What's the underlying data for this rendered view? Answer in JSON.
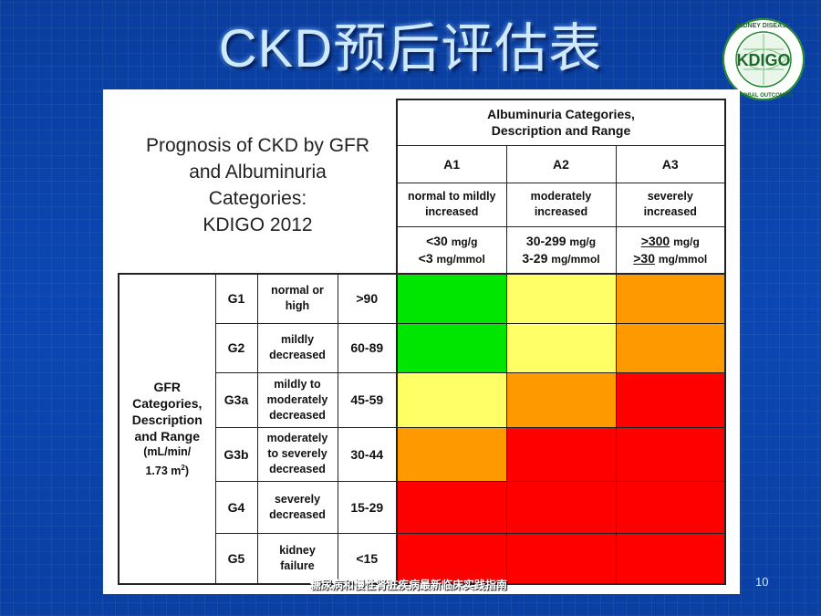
{
  "slide": {
    "title": "CKD预后评估表",
    "page_number": "10",
    "footer": "糖尿病和慢性肾脏疾病最新临床实践指南"
  },
  "logo": {
    "ring_text": "KIDNEY DISEASE · IMPROVING GLOBAL OUTCOMES",
    "center_text": "KDIGO"
  },
  "prognosis_title": [
    "Prognosis of CKD by GFR",
    "and Albuminuria",
    "Categories:",
    "KDIGO 2012"
  ],
  "albuminuria": {
    "header_line1": "Albuminuria Categories,",
    "header_line2": "Description and Range",
    "categories": [
      {
        "code": "A1",
        "desc1": "normal to mildly",
        "desc2": "increased",
        "range1_val": "<30",
        "range1_unit": "mg/g",
        "range2_val": "<3",
        "range2_unit": "mg/mmol"
      },
      {
        "code": "A2",
        "desc1": "moderately",
        "desc2": "increased",
        "range1_val": "30-299",
        "range1_unit": "mg/g",
        "range2_val": "3-29",
        "range2_unit": "mg/mmol"
      },
      {
        "code": "A3",
        "desc1": "severely",
        "desc2": "increased",
        "range1_val": ">300",
        "range1_unit": "mg/g",
        "range2_val": ">30",
        "range2_unit": "mg/mmol"
      }
    ]
  },
  "gfr": {
    "header_line1": "GFR",
    "header_line2": "Categories,",
    "header_line3": "Description",
    "header_line4": "and Range",
    "unit_line1": "(mL/min/",
    "unit_line2": "1.73 m",
    "unit_sup": "2",
    "unit_close": ")",
    "categories": [
      {
        "code": "G1",
        "desc": [
          "normal or",
          "high"
        ],
        "range": ">90"
      },
      {
        "code": "G2",
        "desc": [
          "mildly",
          "decreased"
        ],
        "range": "60-89"
      },
      {
        "code": "G3a",
        "desc": [
          "mildly to",
          "moderately",
          "decreased"
        ],
        "range": "45-59"
      },
      {
        "code": "G3b",
        "desc": [
          "moderately",
          "to severely",
          "decreased"
        ],
        "range": "30-44"
      },
      {
        "code": "G4",
        "desc": [
          "severely",
          "decreased"
        ],
        "range": "15-29"
      },
      {
        "code": "G5",
        "desc": [
          "kidney",
          "failure"
        ],
        "range": "<15"
      }
    ]
  },
  "risk_colors": {
    "green": "#00e600",
    "yellow": "#ffff66",
    "orange": "#ff9900",
    "red": "#ff0000"
  },
  "risk_matrix": [
    [
      "green",
      "yellow",
      "orange"
    ],
    [
      "green",
      "yellow",
      "orange"
    ],
    [
      "yellow",
      "orange",
      "red"
    ],
    [
      "orange",
      "red",
      "red"
    ],
    [
      "red",
      "red",
      "red"
    ],
    [
      "red",
      "red",
      "red"
    ]
  ]
}
